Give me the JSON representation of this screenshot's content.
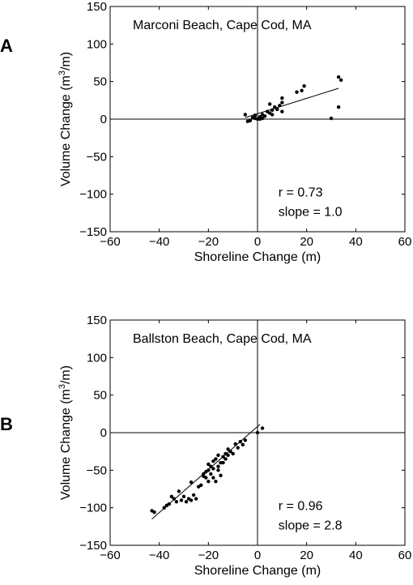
{
  "chart_data": [
    {
      "type": "scatter",
      "panel_label": "A",
      "title": "Marconi Beach, Cape Cod, MA",
      "xlabel": "Shoreline Change (m)",
      "ylabel_main": "Volume Change (m",
      "ylabel_sup": "3",
      "ylabel_end": "/m)",
      "xlim": [
        -60,
        60
      ],
      "ylim": [
        -150,
        150
      ],
      "xticks": [
        -60,
        -40,
        -20,
        0,
        20,
        40,
        60
      ],
      "yticks": [
        -150,
        -100,
        -50,
        0,
        50,
        100,
        150
      ],
      "grid": false,
      "r_text": "r = 0.73",
      "slope_text": "slope = 1.0",
      "points": [
        [
          -5,
          6
        ],
        [
          -4,
          -3
        ],
        [
          -3,
          -2
        ],
        [
          -2,
          2
        ],
        [
          -1,
          5
        ],
        [
          -1,
          1
        ],
        [
          0,
          0
        ],
        [
          1,
          3
        ],
        [
          1,
          0
        ],
        [
          2,
          1
        ],
        [
          2,
          6
        ],
        [
          3,
          4
        ],
        [
          4,
          10
        ],
        [
          5,
          8
        ],
        [
          5,
          20
        ],
        [
          6,
          12
        ],
        [
          6,
          6
        ],
        [
          7,
          16
        ],
        [
          8,
          13
        ],
        [
          9,
          18
        ],
        [
          10,
          22
        ],
        [
          10,
          10
        ],
        [
          10,
          28
        ],
        [
          16,
          36
        ],
        [
          18,
          38
        ],
        [
          19,
          44
        ],
        [
          30,
          1
        ],
        [
          33,
          16
        ],
        [
          33,
          56
        ],
        [
          34,
          52
        ]
      ],
      "fit_line": [
        [
          -5,
          2
        ],
        [
          33,
          41
        ]
      ]
    },
    {
      "type": "scatter",
      "panel_label": "B",
      "title": "Ballston Beach, Cape Cod, MA",
      "xlabel": "Shoreline Change (m)",
      "ylabel_main": "Volume Change (m",
      "ylabel_sup": "3",
      "ylabel_end": "/m)",
      "xlim": [
        -60,
        60
      ],
      "ylim": [
        -150,
        150
      ],
      "xticks": [
        -60,
        -40,
        -20,
        0,
        20,
        40,
        60
      ],
      "yticks": [
        -150,
        -100,
        -50,
        0,
        50,
        100,
        150
      ],
      "grid": false,
      "r_text": "r = 0.96",
      "slope_text": "slope = 2.8",
      "points": [
        [
          -43,
          -104
        ],
        [
          -42,
          -106
        ],
        [
          -38,
          -100
        ],
        [
          -37,
          -97
        ],
        [
          -36,
          -95
        ],
        [
          -35,
          -85
        ],
        [
          -34,
          -88
        ],
        [
          -33,
          -92
        ],
        [
          -32,
          -78
        ],
        [
          -31,
          -90
        ],
        [
          -30,
          -85
        ],
        [
          -29,
          -92
        ],
        [
          -28,
          -88
        ],
        [
          -27,
          -66
        ],
        [
          -27,
          -90
        ],
        [
          -26,
          -83
        ],
        [
          -25,
          -88
        ],
        [
          -24,
          -72
        ],
        [
          -23,
          -70
        ],
        [
          -22,
          -55
        ],
        [
          -21,
          -52
        ],
        [
          -21,
          -60
        ],
        [
          -20,
          -50
        ],
        [
          -20,
          -42
        ],
        [
          -19,
          -55
        ],
        [
          -19,
          -45
        ],
        [
          -18,
          -38
        ],
        [
          -18,
          -60
        ],
        [
          -17,
          -35
        ],
        [
          -17,
          -65
        ],
        [
          -16,
          -30
        ],
        [
          -16,
          -45
        ],
        [
          -15,
          -40
        ],
        [
          -15,
          -57
        ],
        [
          -14,
          -32
        ],
        [
          -13,
          -28
        ],
        [
          -13,
          -35
        ],
        [
          -12,
          -30
        ],
        [
          -12,
          -22
        ],
        [
          -11,
          -25
        ],
        [
          -10,
          -28
        ],
        [
          -9,
          -15
        ],
        [
          -8,
          -20
        ],
        [
          -7,
          -12
        ],
        [
          -6,
          -16
        ],
        [
          -5,
          -10
        ],
        [
          0,
          0
        ],
        [
          2,
          6
        ],
        [
          -20,
          -65
        ],
        [
          -18,
          -48
        ],
        [
          -16,
          -50
        ],
        [
          -14,
          -40
        ],
        [
          -22,
          -58
        ]
      ],
      "fit_line": [
        [
          -43,
          -115
        ],
        [
          1,
          11
        ]
      ]
    }
  ]
}
